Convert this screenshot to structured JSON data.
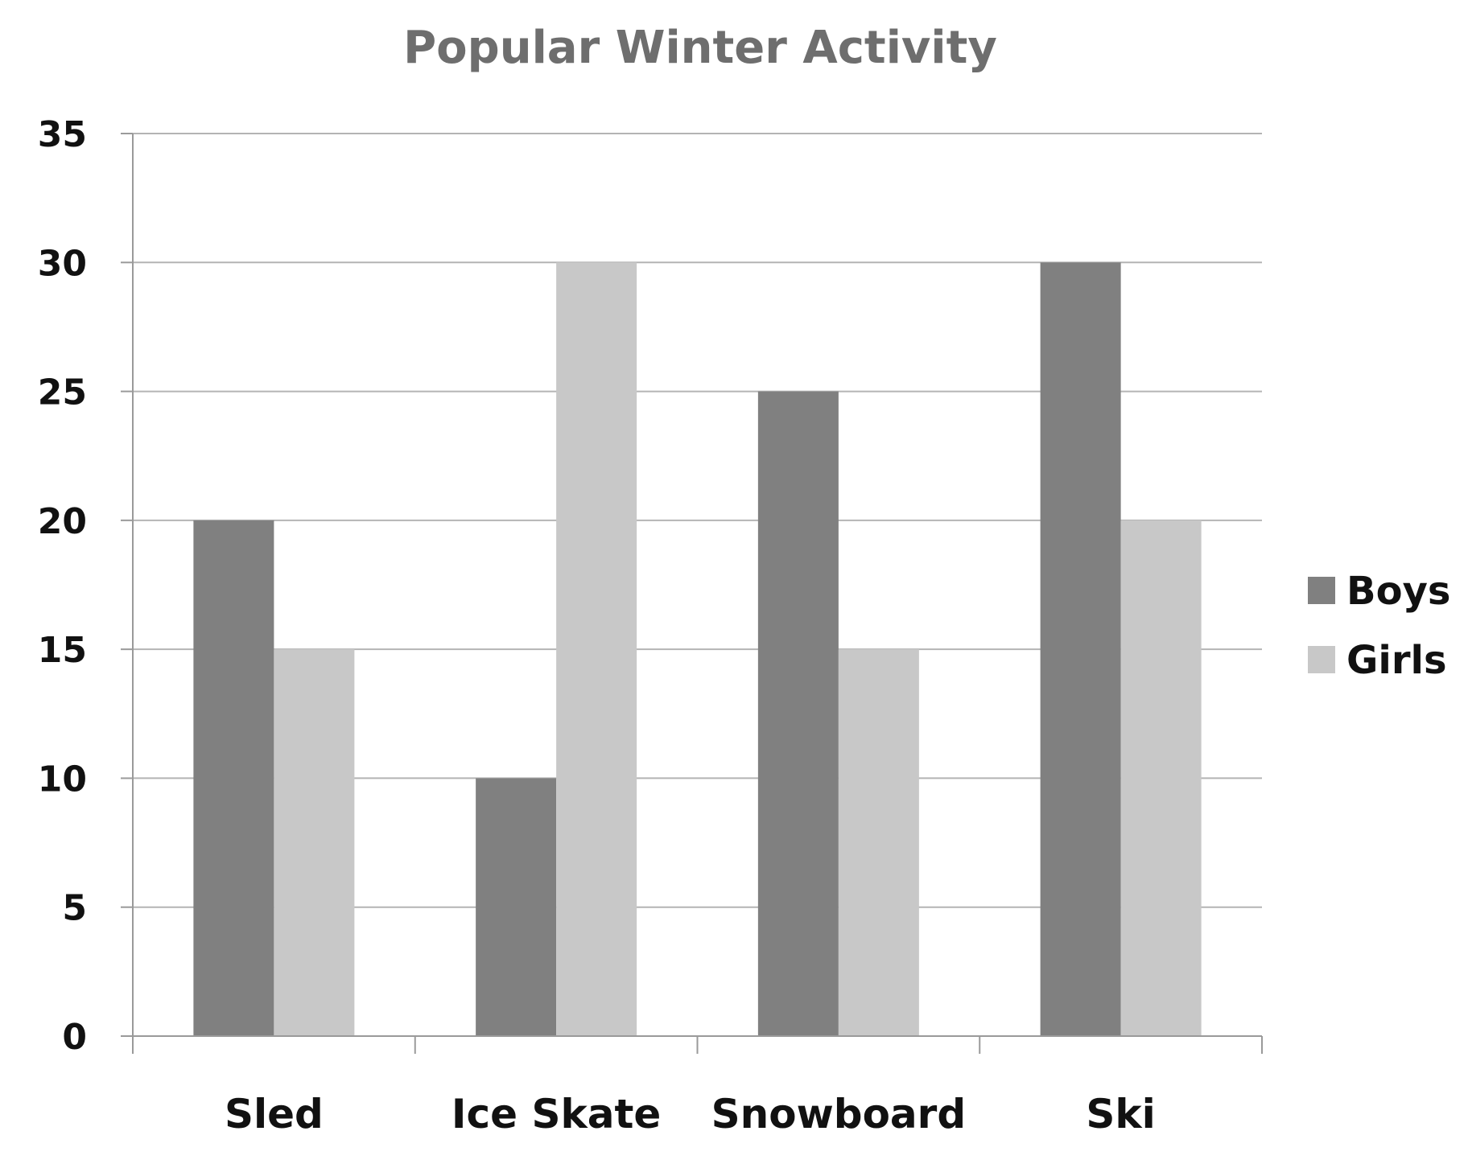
{
  "chart_data": {
    "type": "bar",
    "title": "Popular Winter Activity",
    "xlabel": "",
    "ylabel": "",
    "categories": [
      "Sled",
      "Ice Skate",
      "Snowboard",
      "Ski"
    ],
    "series": [
      {
        "name": "Boys",
        "values": [
          20,
          10,
          25,
          30
        ],
        "color": "#808080"
      },
      {
        "name": "Girls",
        "values": [
          15,
          30,
          15,
          20
        ],
        "color": "#c8c8c8"
      }
    ],
    "ylim": [
      0,
      35
    ],
    "yticks": [
      "0",
      "5",
      "10",
      "15",
      "20",
      "25",
      "30",
      "35"
    ],
    "grid": true,
    "legend_position": "right",
    "colors": {
      "gridline": "#b4b4b4",
      "axis": "#9a9a9a",
      "title": "#6e6e6e"
    }
  }
}
